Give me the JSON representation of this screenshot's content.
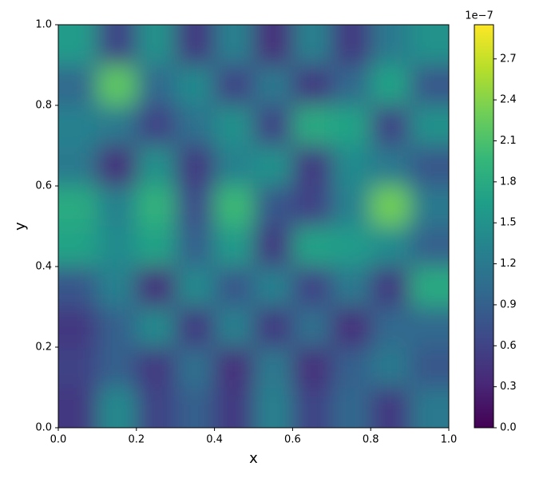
{
  "chart_data": {
    "type": "heatmap",
    "x_label": "x",
    "y_label": "y",
    "xlim": [
      0,
      1
    ],
    "ylim": [
      0,
      1
    ],
    "xticks": [
      {
        "value": 0,
        "label": "0.0"
      },
      0.2,
      0.4,
      0.6,
      0.8,
      {
        "value": 1,
        "label": "1.0"
      }
    ],
    "yticks": [
      {
        "value": 0,
        "label": "0.0"
      },
      0.2,
      0.4,
      0.6,
      0.8,
      {
        "value": 1,
        "label": "1.0"
      }
    ],
    "colormap": "viridis",
    "z": [
      [
        1.6,
        0.6,
        1.5,
        0.5,
        1.3,
        0.4,
        1.3,
        0.5,
        1.2,
        1.5
      ],
      [
        1.0,
        2.2,
        1.0,
        1.4,
        0.6,
        1.2,
        0.5,
        1.0,
        1.7,
        0.8
      ],
      [
        1.3,
        1.2,
        0.6,
        1.1,
        1.5,
        0.6,
        1.8,
        1.7,
        0.6,
        1.5
      ],
      [
        1.2,
        0.4,
        1.5,
        0.5,
        1.3,
        1.5,
        0.5,
        1.4,
        1.2,
        0.8
      ],
      [
        1.8,
        1.3,
        1.9,
        0.7,
        2.0,
        0.8,
        0.6,
        1.3,
        2.3,
        1.2
      ],
      [
        1.7,
        1.4,
        1.7,
        0.9,
        1.6,
        0.5,
        1.7,
        1.6,
        1.4,
        0.9
      ],
      [
        0.8,
        1.3,
        0.4,
        1.4,
        0.8,
        1.3,
        0.6,
        1.2,
        0.5,
        1.8
      ],
      [
        0.5,
        0.9,
        1.4,
        0.5,
        1.3,
        0.5,
        1.1,
        0.4,
        1.0,
        1.0
      ],
      [
        0.6,
        0.9,
        0.5,
        1.1,
        0.4,
        1.2,
        0.4,
        0.9,
        1.2,
        0.8
      ],
      [
        0.5,
        1.4,
        0.6,
        0.9,
        0.5,
        1.3,
        0.6,
        1.0,
        0.5,
        1.2
      ]
    ],
    "colorbar_lim": [
      0,
      2.95
    ],
    "colorbar_ticks": [
      {
        "value": 0,
        "label": "0.0"
      },
      0.3,
      0.6,
      0.9,
      1.2,
      1.5,
      1.8,
      2.1,
      2.4,
      2.7
    ],
    "colorbar_offset": "1e−7"
  }
}
